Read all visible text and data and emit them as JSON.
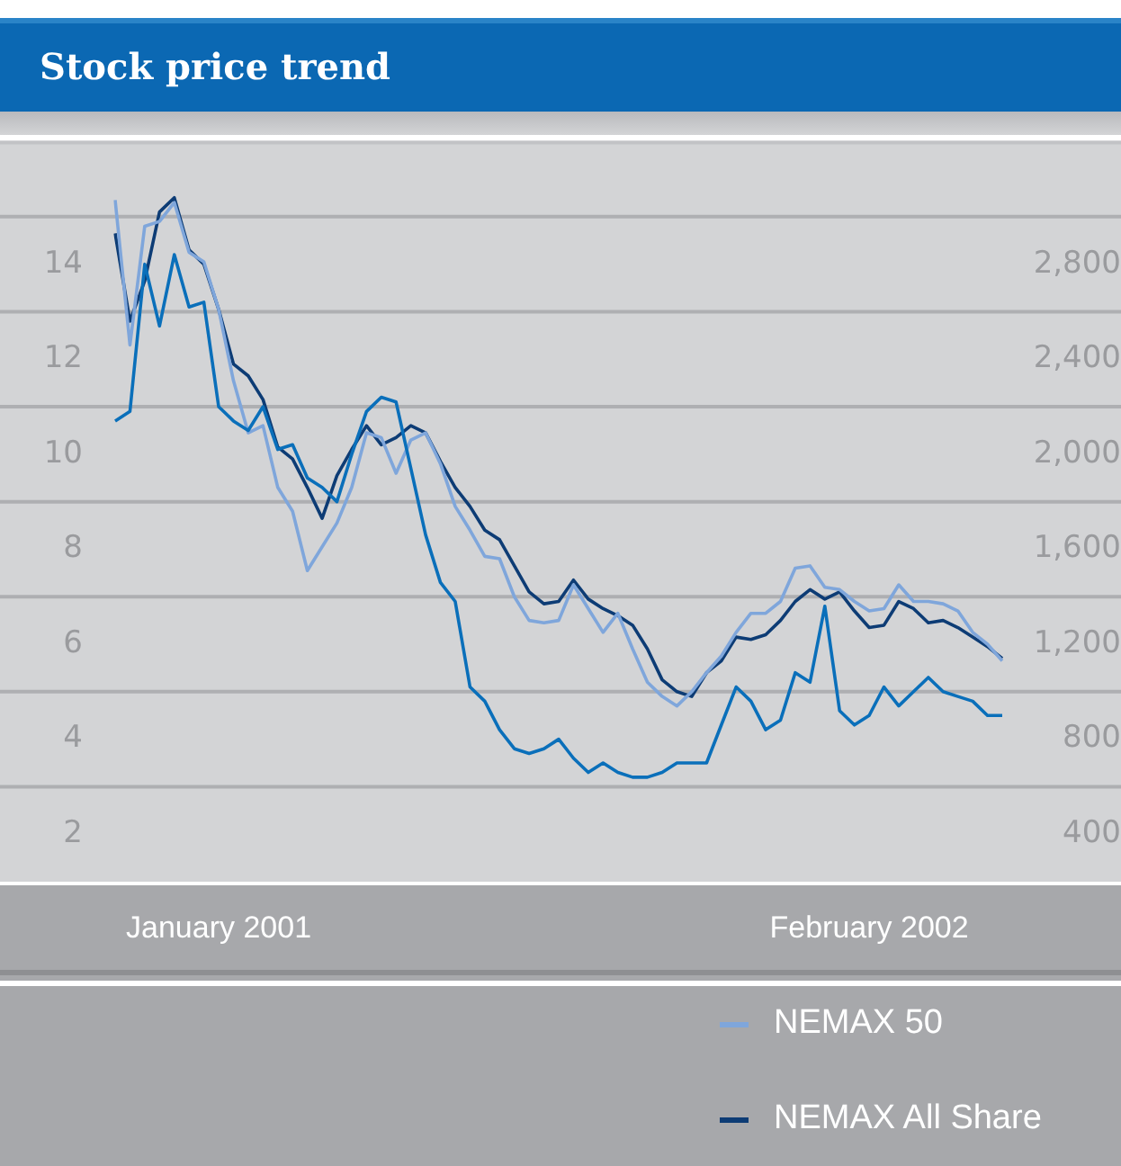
{
  "chart_data": {
    "type": "line",
    "title": "Stock price trend",
    "categories": [
      null,
      null,
      null,
      null,
      null,
      null,
      null,
      "January 2001",
      null,
      null,
      null,
      null,
      null,
      null,
      null,
      null,
      null,
      null,
      null,
      null,
      null,
      null,
      null,
      null,
      null,
      null,
      null,
      null,
      null,
      null,
      null,
      null,
      null,
      null,
      null,
      null,
      null,
      null,
      null,
      null,
      null,
      null,
      null,
      null,
      null,
      null,
      null,
      null,
      null,
      null,
      null,
      "February 2002",
      null,
      null,
      null,
      null,
      null,
      null,
      null,
      null,
      null
    ],
    "series": [
      {
        "color": "#0a6fba",
        "values": [
          10.7,
          10.9,
          14.0,
          12.7,
          14.2,
          13.1,
          13.2,
          11.0,
          10.7,
          10.5,
          11.0,
          10.1,
          10.2,
          9.5,
          9.3,
          9.0,
          10.0,
          10.9,
          11.2,
          11.1,
          9.7,
          8.3,
          7.3,
          6.9,
          5.1,
          4.8,
          4.2,
          3.8,
          3.7,
          3.8,
          4.0,
          3.6,
          3.3,
          3.5,
          3.3,
          3.2,
          3.2,
          3.3,
          3.5,
          3.5,
          3.5,
          4.3,
          5.1,
          4.8,
          4.2,
          4.4,
          5.4,
          5.2,
          6.8,
          4.6,
          4.3,
          4.5,
          5.1,
          4.7,
          5.0,
          5.3,
          5.0,
          4.9,
          4.8,
          4.5,
          4.5
        ]
      },
      {
        "name": "NEMAX 50",
        "color": "#7fa6db",
        "axis": "y2",
        "values": [
          3070,
          2460,
          2960,
          2980,
          3060,
          2850,
          2810,
          2610,
          2310,
          2090,
          2120,
          1860,
          1760,
          1510,
          1610,
          1710,
          1860,
          2090,
          2070,
          1920,
          2060,
          2090,
          1960,
          1780,
          1680,
          1570,
          1560,
          1400,
          1300,
          1290,
          1300,
          1450,
          1350,
          1250,
          1330,
          1180,
          1040,
          980,
          940,
          1000,
          1080,
          1150,
          1250,
          1330,
          1330,
          1380,
          1520,
          1530,
          1440,
          1430,
          1380,
          1340,
          1350,
          1450,
          1380,
          1380,
          1370,
          1340,
          1250,
          1200,
          1130
        ]
      },
      {
        "name": "NEMAX All Share",
        "color": "#0d3c75",
        "axis": "y2",
        "values": [
          2930,
          2560,
          2730,
          3020,
          3080,
          2860,
          2800,
          2610,
          2380,
          2330,
          2230,
          2030,
          1980,
          1860,
          1730,
          1910,
          2020,
          2120,
          2040,
          2070,
          2120,
          2090,
          1970,
          1860,
          1780,
          1680,
          1640,
          1530,
          1420,
          1370,
          1380,
          1470,
          1390,
          1350,
          1320,
          1280,
          1180,
          1050,
          1000,
          980,
          1080,
          1130,
          1230,
          1220,
          1240,
          1300,
          1380,
          1430,
          1390,
          1420,
          1340,
          1270,
          1280,
          1380,
          1350,
          1290,
          1300,
          1270,
          1230,
          1190,
          1140
        ]
      }
    ],
    "ylim": [
      1.0,
      16.6
    ],
    "yticks": [
      {
        "value": 2,
        "label": "2"
      },
      {
        "value": 3,
        "label": null
      },
      {
        "value": 4,
        "label": "4"
      },
      {
        "value": 5,
        "label": null
      },
      {
        "value": 6,
        "label": "6"
      },
      {
        "value": 7,
        "label": null
      },
      {
        "value": 8,
        "label": "8"
      },
      {
        "value": 9,
        "label": null
      },
      {
        "value": 10,
        "label": "10"
      },
      {
        "value": 11,
        "label": null
      },
      {
        "value": 12,
        "label": "12"
      },
      {
        "value": 13,
        "label": null
      },
      {
        "value": 14,
        "label": "14"
      },
      {
        "value": 15,
        "label": null
      }
    ],
    "y2lim": [
      200,
      3320
    ],
    "y2ticks": [
      400,
      800,
      {
        "value": 1200,
        "label": "1,200"
      },
      {
        "value": 1600,
        "label": "1,600"
      },
      {
        "value": 2000,
        "label": "2,000"
      },
      {
        "value": 2400,
        "label": "2,400"
      },
      {
        "value": 2800,
        "label": "2,800"
      }
    ],
    "grid": true,
    "legend": "bottom",
    "marker": "none"
  }
}
